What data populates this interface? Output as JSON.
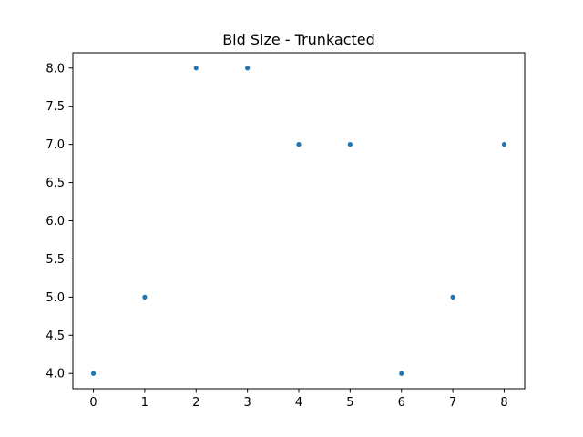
{
  "chart_data": {
    "type": "scatter",
    "title": "Bid Size - Trunkacted",
    "xlabel": "",
    "ylabel": "",
    "x": [
      0,
      1,
      2,
      3,
      4,
      5,
      6,
      7,
      8
    ],
    "y": [
      4.0,
      5.0,
      8.0,
      8.0,
      7.0,
      7.0,
      4.0,
      5.0,
      7.0
    ],
    "xlim": [
      -0.4,
      8.4
    ],
    "ylim": [
      3.8,
      8.2
    ],
    "x_ticks": [
      0,
      1,
      2,
      3,
      4,
      5,
      6,
      7,
      8
    ],
    "x_tick_labels": [
      "0",
      "1",
      "2",
      "3",
      "4",
      "5",
      "6",
      "7",
      "8"
    ],
    "y_ticks": [
      4.0,
      4.5,
      5.0,
      5.5,
      6.0,
      6.5,
      7.0,
      7.5,
      8.0
    ],
    "y_tick_labels": [
      "4.0",
      "4.5",
      "5.0",
      "5.5",
      "6.0",
      "6.5",
      "7.0",
      "7.5",
      "8.0"
    ],
    "grid": false,
    "marker_color": "#1f77b4"
  }
}
